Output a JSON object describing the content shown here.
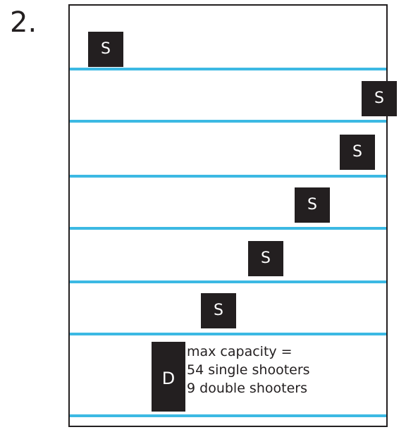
{
  "problem_number": "2.",
  "colors": {
    "lane_line": "#3cb9e3",
    "shooter_box": "#231f20",
    "shooter_text": "#ffffff",
    "frame": "#231f20"
  },
  "shooters": [
    {
      "label": "S"
    },
    {
      "label": "S"
    },
    {
      "label": "S"
    },
    {
      "label": "S"
    },
    {
      "label": "S"
    },
    {
      "label": "S"
    }
  ],
  "double_shooter": {
    "label": "D"
  },
  "capacity_note": {
    "line1": "max capacity =",
    "line2": "54 single shooters",
    "line3": "9 double shooters"
  }
}
